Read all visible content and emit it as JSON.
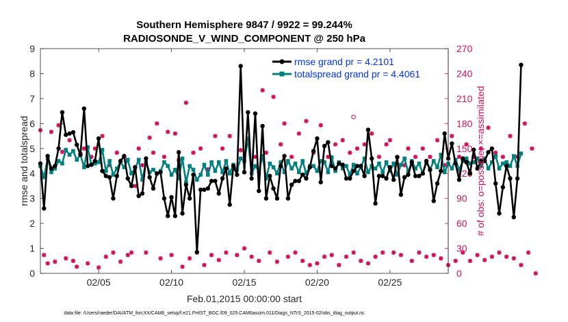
{
  "chart_data": {
    "type": "line",
    "title_line1": "Southern Hemisphere 9847 / 9922 = 99.244%",
    "title_line2": "RADIOSONDE_V_WIND_COMPONENT @ 250 hPa",
    "xlabel": "Feb.01,2015 00:00:00 start",
    "ylabel_left": "rmse and totalspread",
    "ylabel_right": "# of obs: o=possible; ×=assimilated",
    "footnote": "data file: /Users/raeder/DAI/ATM_forcXX/CAM6_setup/f.e21.FHIST_BGC.f09_025.CAM6assim.011/Diags_NTrS_2015-02/obs_diag_output.nc",
    "xlim": [
      1.0,
      29.0
    ],
    "ylim_left": [
      0,
      9
    ],
    "ylim_right": [
      0,
      270
    ],
    "x_ticks": [
      5,
      10,
      15,
      20,
      25
    ],
    "x_tick_labels": [
      "02/05",
      "02/10",
      "02/15",
      "02/20",
      "02/25"
    ],
    "y_left_ticks": [
      "0",
      "1",
      "2",
      "3",
      "4",
      "5",
      "6",
      "7",
      "8",
      "9"
    ],
    "y_right_ticks": [
      "0",
      "30",
      "60",
      "90",
      "120",
      "150",
      "180",
      "210",
      "240",
      "270"
    ],
    "colors": {
      "rmse": "#000000",
      "spread": "#00807f",
      "obs": "#d0105c",
      "legend_text": "#0033ee"
    },
    "legend": [
      "rmse grand pr = 4.2101",
      "totalspread grand pr = 4.4061"
    ],
    "x_start": 1.0,
    "x_step": 0.25,
    "rmse": [
      4.4,
      2.6,
      4.7,
      4.2,
      4.3,
      5.0,
      6.45,
      5.55,
      5.6,
      5.65,
      5.15,
      4.75,
      6.6,
      4.3,
      4.35,
      4.5,
      5.4,
      4.1,
      3.9,
      3.85,
      3.0,
      3.9,
      4.5,
      4.7,
      3.8,
      3.5,
      4.25,
      3.1,
      3.2,
      4.6,
      3.85,
      3.4,
      4.0,
      4.05,
      3.0,
      2.3,
      3.05,
      2.3,
      4.85,
      2.4,
      3.55,
      3.0,
      3.95,
      0.85,
      3.35,
      3.35,
      3.4,
      3.7,
      3.7,
      3.2,
      3.8,
      4.2,
      2.75,
      4.3,
      3.95,
      8.3,
      4.05,
      6.45,
      3.8,
      6.4,
      3.3,
      5.9,
      3.0,
      3.9,
      3.4,
      3.0,
      4.3,
      4.7,
      3.0,
      3.55,
      3.7,
      3.7,
      3.95,
      3.8,
      4.25,
      4.9,
      5.4,
      3.65,
      5.1,
      5.25,
      4.3,
      4.2,
      4.4,
      4.35,
      3.8,
      3.8,
      4.1,
      4.3,
      4.3,
      3.9,
      5.75,
      4.6,
      2.8,
      3.9,
      3.9,
      3.8,
      4.25,
      3.75,
      4.65,
      3.15,
      3.85,
      3.95,
      4.45,
      3.9,
      3.9,
      4.0,
      4.5,
      4.15,
      2.9,
      3.6,
      4.1,
      5.6,
      4.6,
      5.2,
      4.4,
      3.75,
      4.6,
      4.45,
      4.0,
      4.95,
      4.2,
      4.5,
      4.5,
      4.85,
      5.0,
      3.6,
      2.4,
      3.45,
      4.3,
      3.8,
      2.25,
      3.8,
      8.35
    ],
    "totalspread": [
      4.3,
      3.85,
      4.6,
      4.05,
      4.2,
      4.5,
      4.4,
      4.95,
      4.75,
      4.9,
      4.55,
      4.75,
      4.25,
      5.05,
      4.35,
      4.4,
      4.45,
      4.95,
      4.1,
      4.5,
      3.95,
      4.2,
      4.45,
      4.25,
      4.55,
      4.0,
      4.2,
      4.55,
      3.75,
      4.45,
      4.05,
      4.15,
      4.0,
      4.1,
      4.45,
      4.3,
      3.95,
      4.15,
      3.8,
      4.6,
      3.65,
      4.3,
      4.15,
      3.75,
      3.95,
      4.35,
      3.95,
      4.45,
      4.1,
      4.45,
      4.05,
      4.5,
      4.0,
      4.35,
      4.15,
      4.6,
      4.5,
      5.4,
      4.0,
      4.3,
      4.1,
      4.7,
      3.8,
      4.4,
      4.25,
      4.0,
      4.45,
      4.05,
      4.5,
      4.2,
      4.4,
      4.05,
      4.5,
      4.0,
      4.3,
      4.3,
      4.1,
      4.5,
      4.45,
      4.05,
      4.65,
      4.1,
      4.45,
      4.2,
      4.3,
      3.95,
      4.35,
      4.0,
      4.25,
      4.6,
      4.05,
      4.3,
      4.2,
      4.4,
      4.05,
      4.45,
      4.1,
      4.4,
      3.95,
      4.35,
      4.6,
      4.05,
      4.5,
      4.2,
      4.4,
      4.0,
      4.45,
      4.15,
      4.5,
      4.25,
      4.75,
      4.05,
      4.4,
      4.2,
      4.55,
      4.15,
      4.5,
      4.6,
      4.4,
      4.45,
      4.6,
      4.3,
      4.6,
      4.2,
      4.45,
      4.7,
      4.2,
      4.4,
      4.45,
      4.3,
      4.7,
      4.3,
      4.8
    ],
    "obs_assimilated": [
      172,
      22,
      12,
      170,
      14,
      178,
      146,
      18,
      160,
      15,
      8,
      144,
      150,
      12,
      140,
      150,
      7,
      165,
      20,
      130,
      25,
      145,
      14,
      140,
      22,
      25,
      105,
      150,
      130,
      25,
      163,
      145,
      180,
      18,
      140,
      170,
      22,
      168,
      136,
      8,
      205,
      18,
      145,
      25,
      150,
      10,
      125,
      22,
      165,
      16,
      150,
      25,
      165,
      130,
      22,
      148,
      30,
      160,
      20,
      140,
      15,
      220,
      145,
      25,
      212,
      14,
      155,
      180,
      20,
      140,
      25,
      168,
      15,
      183,
      10,
      145,
      12,
      178,
      20,
      140,
      22,
      155,
      10,
      160,
      20,
      145,
      25,
      150,
      15,
      155,
      12,
      168,
      20,
      140,
      25,
      155,
      160,
      25,
      140,
      22,
      130,
      150,
      15,
      140,
      25,
      150,
      20,
      140,
      22,
      160,
      18,
      130,
      10,
      165,
      15,
      140,
      25,
      155,
      15,
      140,
      22,
      150,
      16,
      175,
      20,
      145,
      25,
      140,
      20,
      165,
      18,
      140,
      10,
      180,
      25,
      150,
      0
    ],
    "obs_possible": [
      null,
      null,
      null,
      null,
      null,
      null,
      182,
      null,
      null,
      null,
      null,
      null,
      null,
      null,
      null,
      null,
      null,
      null,
      null,
      null,
      null,
      null,
      null,
      null,
      null,
      null,
      null,
      null,
      null,
      null,
      null,
      null,
      null,
      null,
      null,
      null,
      null,
      null,
      null,
      null,
      null,
      null,
      null,
      null,
      null,
      null,
      null,
      null,
      null,
      null,
      null,
      null,
      null,
      null,
      null,
      null,
      null,
      null,
      null,
      null,
      null,
      null,
      null,
      null,
      null,
      null,
      null,
      null,
      null,
      null,
      null,
      null,
      null,
      null,
      null,
      null,
      null,
      null,
      null,
      null,
      null,
      null,
      null,
      null,
      null,
      null,
      188,
      null,
      null,
      null,
      null,
      null,
      null,
      null,
      null,
      null,
      null,
      null,
      null,
      null,
      null,
      null,
      null,
      null,
      null,
      null,
      null,
      null,
      null,
      null,
      null,
      null,
      null,
      null,
      null,
      null,
      null,
      null,
      null,
      null,
      null,
      null,
      null,
      null,
      null,
      null,
      null,
      null,
      null,
      null,
      null,
      null,
      null,
      null,
      null,
      null,
      null
    ]
  }
}
